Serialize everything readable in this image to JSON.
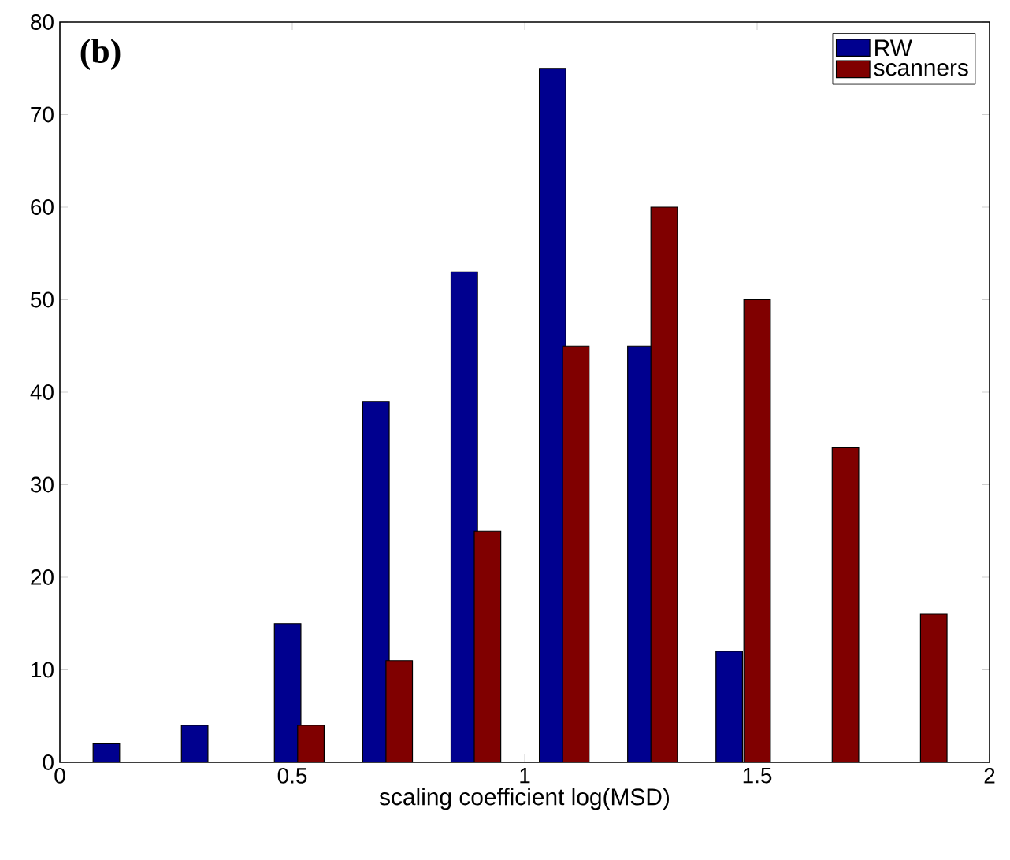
{
  "chart_data": {
    "type": "bar",
    "title": "(b)",
    "xlabel": "scaling coefficient log(MSD)",
    "xlim": [
      0,
      2
    ],
    "xticks": [
      0,
      0.5,
      1,
      1.5,
      2
    ],
    "ylim": [
      0,
      80
    ],
    "yticks": [
      0,
      10,
      20,
      30,
      40,
      50,
      60,
      70,
      80
    ],
    "legend": "top right",
    "grid": false,
    "series": [
      {
        "name": "RW",
        "color": "#00008f",
        "x": [
          0.1,
          0.29,
          0.49,
          0.68,
          0.87,
          1.06,
          1.25,
          1.44
        ],
        "values": [
          2,
          4,
          15,
          39,
          53,
          75,
          45,
          12
        ]
      },
      {
        "name": "scanners",
        "color": "#800000",
        "x": [
          0.54,
          0.73,
          0.92,
          1.11,
          1.3,
          1.5,
          1.69,
          1.88
        ],
        "values": [
          4,
          11,
          25,
          45,
          60,
          50,
          34,
          16
        ]
      }
    ]
  }
}
